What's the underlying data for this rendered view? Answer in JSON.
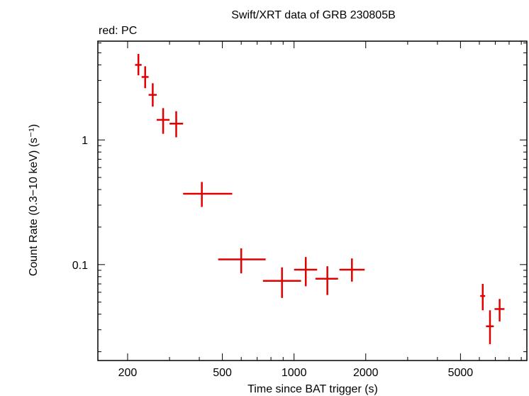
{
  "chart_data": {
    "type": "scatter",
    "title": "Swift/XRT data of GRB 230805B",
    "legend_label": "red: PC",
    "xlabel": "Time since BAT trigger (s)",
    "ylabel": "Count Rate (0.3−10 keV) (s⁻¹)",
    "x_scale": "log",
    "y_scale": "log",
    "xlim": [
      150,
      9500
    ],
    "ylim": [
      0.017,
      6.2
    ],
    "x_ticks": [
      200,
      500,
      1000,
      2000,
      5000
    ],
    "x_tick_labels": [
      "200",
      "500",
      "1000",
      "2000",
      "5000"
    ],
    "y_ticks": [
      0.1,
      1
    ],
    "y_tick_labels": [
      "0.1",
      "1"
    ],
    "grid": false,
    "legend_position": "top-left",
    "series": [
      {
        "color": "#e00000",
        "points": [
          {
            "x": 222,
            "xerr": [
              215,
              229
            ],
            "y": 4.0,
            "yerr": [
              3.3,
              4.9
            ]
          },
          {
            "x": 237,
            "xerr": [
              229,
              245
            ],
            "y": 3.2,
            "yerr": [
              2.6,
              3.9
            ]
          },
          {
            "x": 255,
            "xerr": [
              245,
              265
            ],
            "y": 2.3,
            "yerr": [
              1.85,
              2.85
            ]
          },
          {
            "x": 282,
            "xerr": [
              265,
              300
            ],
            "y": 1.45,
            "yerr": [
              1.12,
              1.8
            ]
          },
          {
            "x": 320,
            "xerr": [
              300,
              342
            ],
            "y": 1.35,
            "yerr": [
              1.05,
              1.7
            ]
          },
          {
            "x": 410,
            "xerr": [
              342,
              550
            ],
            "y": 0.37,
            "yerr": [
              0.29,
              0.46
            ]
          },
          {
            "x": 600,
            "xerr": [
              480,
              760
            ],
            "y": 0.11,
            "yerr": [
              0.085,
              0.135
            ]
          },
          {
            "x": 890,
            "xerr": [
              740,
              1070
            ],
            "y": 0.074,
            "yerr": [
              0.054,
              0.095
            ]
          },
          {
            "x": 1120,
            "xerr": [
              1000,
              1250
            ],
            "y": 0.091,
            "yerr": [
              0.067,
              0.115
            ]
          },
          {
            "x": 1380,
            "xerr": [
              1230,
              1530
            ],
            "y": 0.077,
            "yerr": [
              0.057,
              0.097
            ]
          },
          {
            "x": 1750,
            "xerr": [
              1550,
              1980
            ],
            "y": 0.091,
            "yerr": [
              0.073,
              0.112
            ]
          },
          {
            "x": 6200,
            "xerr": [
              6050,
              6350
            ],
            "y": 0.056,
            "yerr": [
              0.043,
              0.07
            ]
          },
          {
            "x": 6650,
            "xerr": [
              6400,
              6900
            ],
            "y": 0.032,
            "yerr": [
              0.023,
              0.043
            ]
          },
          {
            "x": 7300,
            "xerr": [
              6950,
              7650
            ],
            "y": 0.044,
            "yerr": [
              0.035,
              0.053
            ]
          }
        ]
      }
    ]
  }
}
